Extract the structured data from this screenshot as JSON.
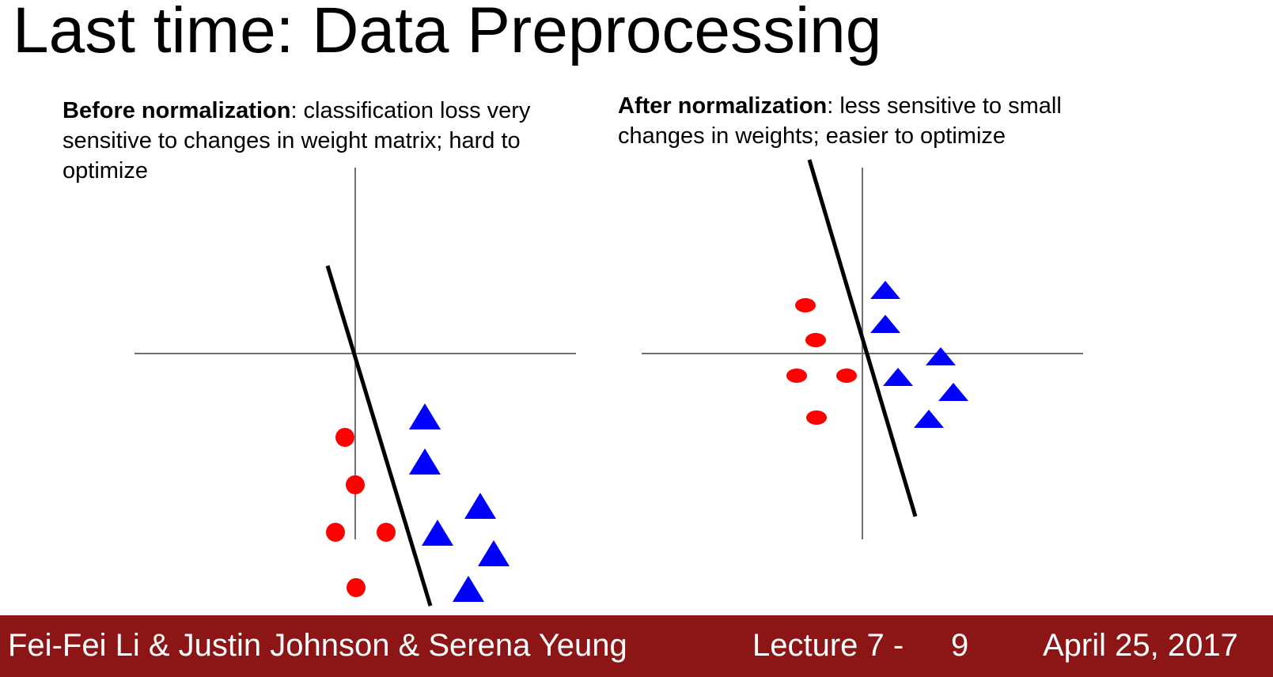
{
  "slide": {
    "title": "Last time: Data Preprocessing"
  },
  "panels": {
    "before": {
      "heading": "Before normalization",
      "text": ": classification loss very sensitive to changes in weight matrix; hard to optimize"
    },
    "after": {
      "heading": "After normalization",
      "text": ": less sensitive to small changes in weights; easier to optimize"
    }
  },
  "colors": {
    "circle_class": "#ff0000",
    "triangle_class": "#0000ff",
    "axis": "#707070",
    "boundary": "#000000",
    "footer_bg": "#8c1515",
    "footer_text": "#ffffff"
  },
  "footer": {
    "authors": "Fei-Fei Li & Justin Johnson & Serena Yeung",
    "lecture": "Lecture 7 -",
    "page": "9",
    "date": "April 25, 2017"
  }
}
